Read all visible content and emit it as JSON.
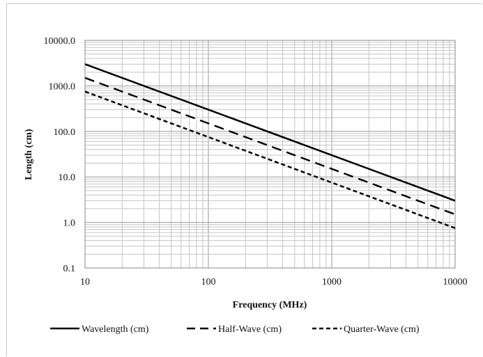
{
  "chart_data": {
    "type": "line",
    "title": "",
    "xlabel": "Frequency (MHz)",
    "ylabel": "Length (cm)",
    "xscale": "log",
    "yscale": "log",
    "xlim": [
      10,
      10000
    ],
    "ylim": [
      0.1,
      10000
    ],
    "grid": true,
    "legend_position": "bottom",
    "x_tick_labels": [
      "10",
      "100",
      "1000",
      "10000"
    ],
    "y_tick_labels": [
      "0.1",
      "1.0",
      "10.0",
      "100.0",
      "1000.0",
      "10000.0"
    ],
    "x": [
      10,
      10000
    ],
    "series": [
      {
        "name": "Wavelength (cm)",
        "values": [
          3000,
          3
        ],
        "style": "solid",
        "color": "#000000"
      },
      {
        "name": "Half-Wave (cm)",
        "values": [
          1500,
          1.5
        ],
        "style": "long-dash",
        "color": "#000000"
      },
      {
        "name": "Quarter-Wave (cm)",
        "values": [
          750,
          0.75
        ],
        "style": "short-dash",
        "color": "#000000"
      }
    ]
  }
}
